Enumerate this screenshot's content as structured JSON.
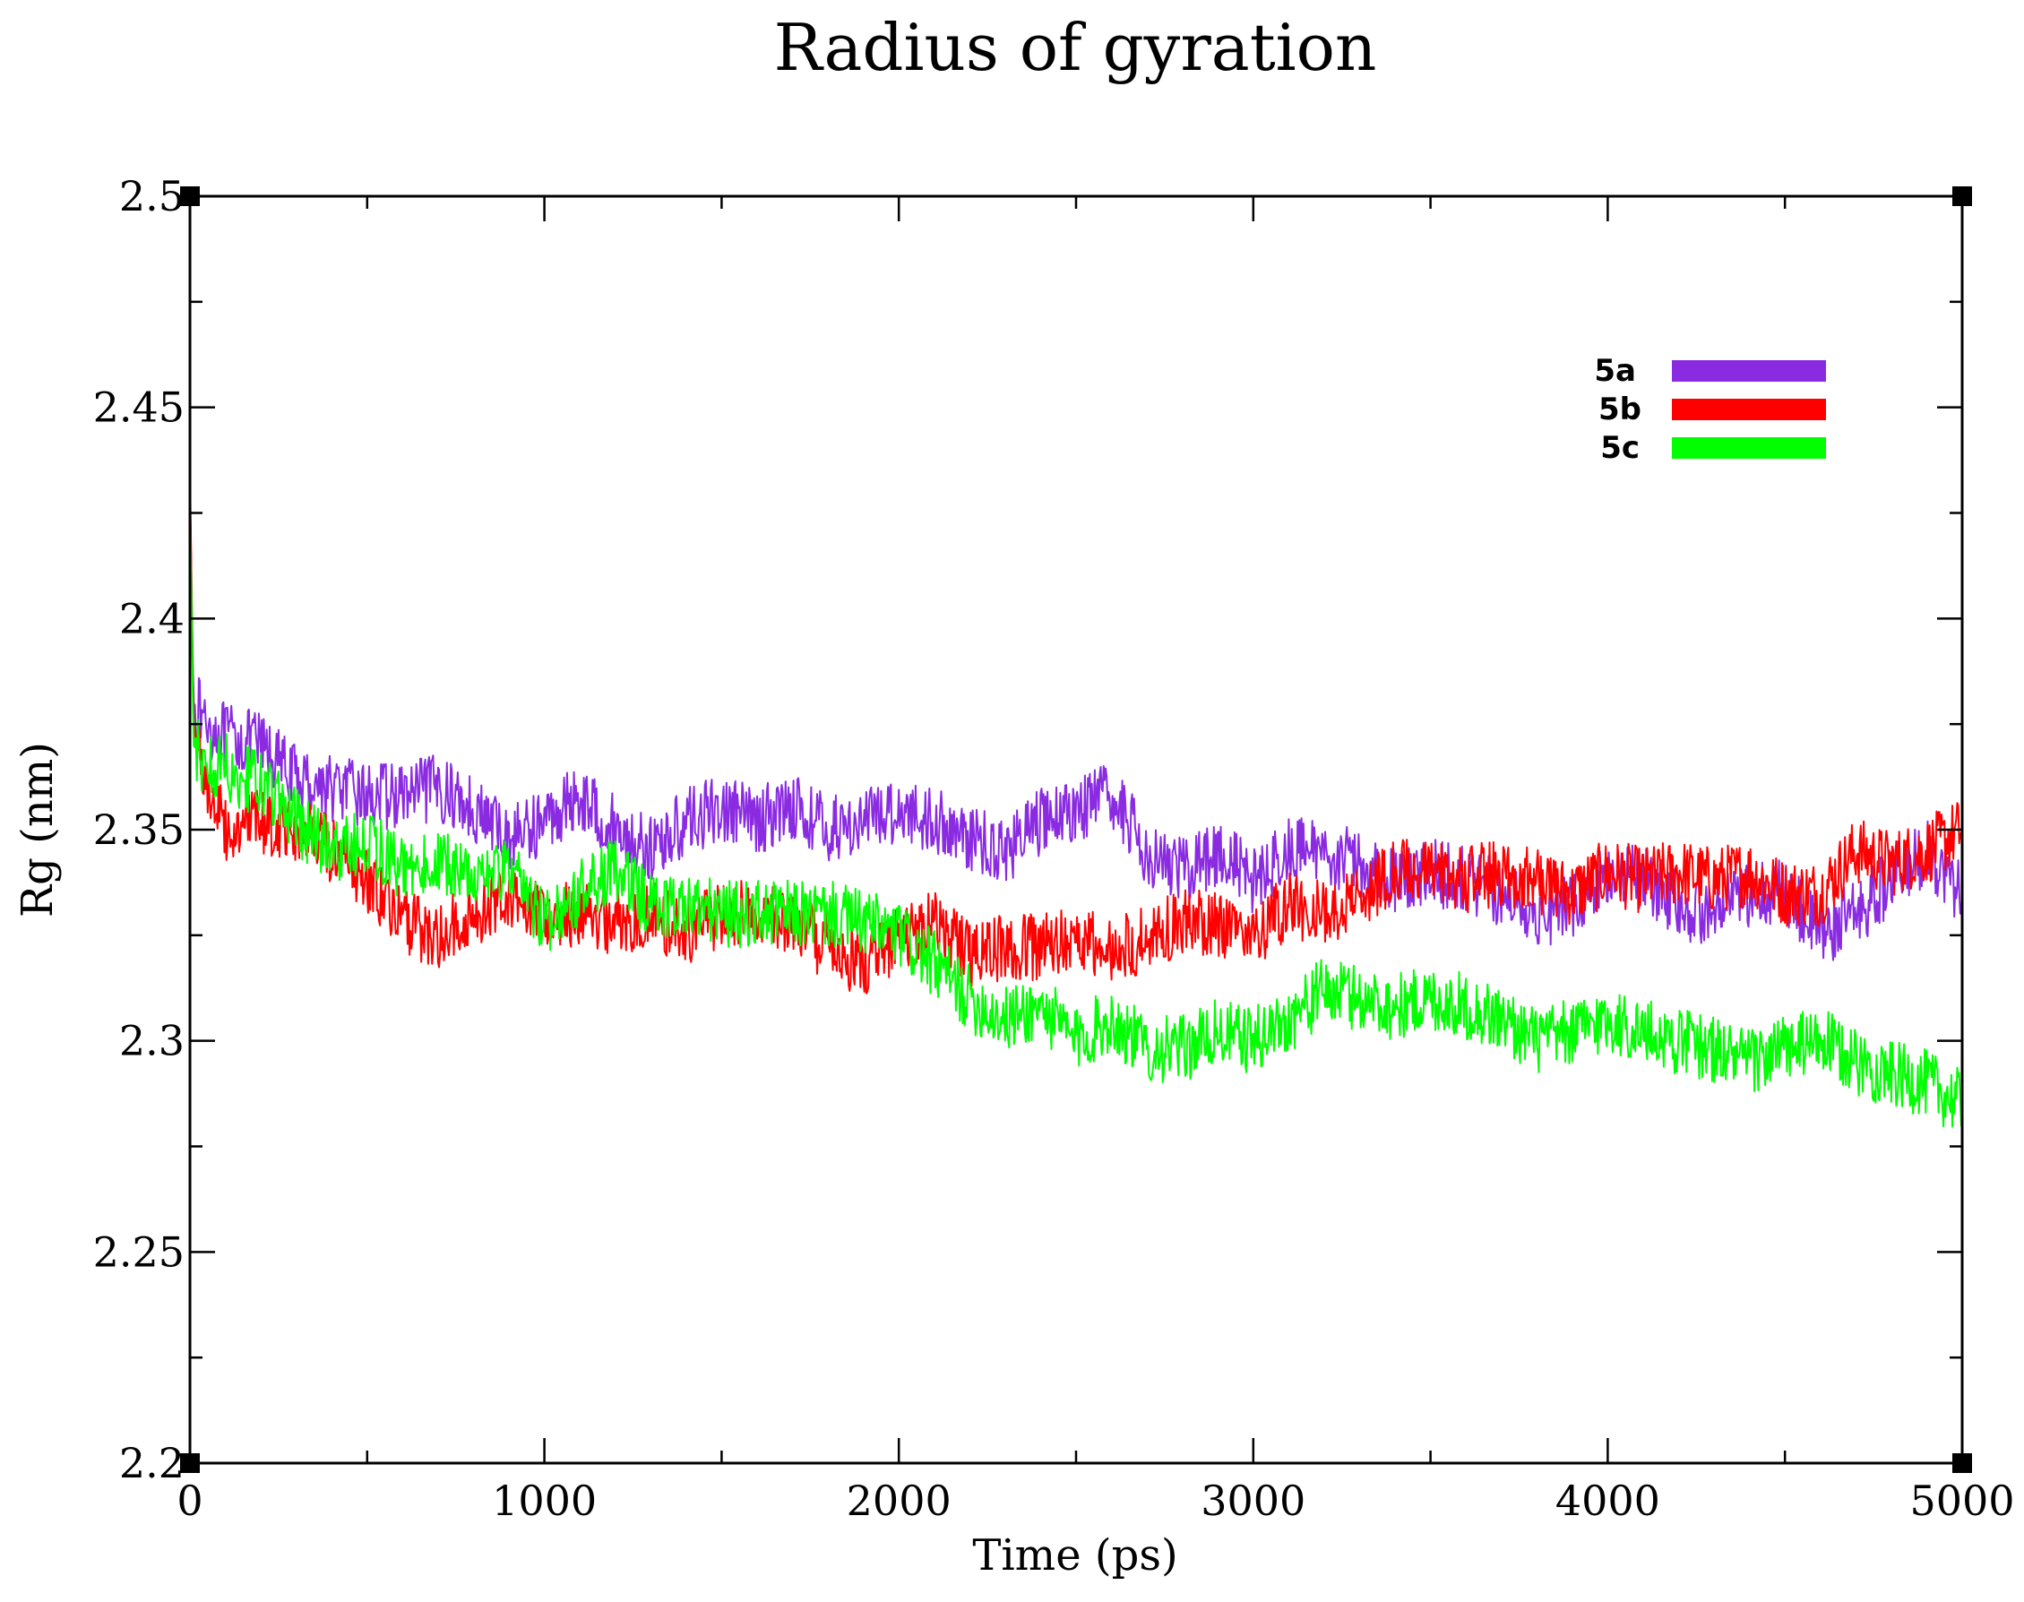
{
  "chart_data": {
    "type": "line",
    "title": "Radius of gyration",
    "xlabel": "Time (ps)",
    "ylabel": "Rg (nm)",
    "xlim": [
      0,
      5000
    ],
    "ylim": [
      2.2,
      2.5
    ],
    "x_ticks": [
      0,
      1000,
      2000,
      3000,
      4000,
      5000
    ],
    "x_tick_labels": [
      "0",
      "1000",
      "2000",
      "3000",
      "4000",
      "5000"
    ],
    "y_ticks": [
      2.2,
      2.25,
      2.3,
      2.35,
      2.4,
      2.45,
      2.5
    ],
    "y_tick_labels": [
      "2.2",
      "2.25",
      "2.3",
      "2.35",
      "2.4",
      "2.45",
      "2.5"
    ],
    "grid": false,
    "legend_position": "top-right",
    "series": [
      {
        "name": "5a",
        "color": "#8a2be2",
        "x": [
          0,
          10,
          50,
          100,
          200,
          300,
          400,
          500,
          600,
          700,
          800,
          900,
          1000,
          1100,
          1200,
          1300,
          1400,
          1500,
          1600,
          1700,
          1800,
          1900,
          2000,
          2100,
          2200,
          2300,
          2400,
          2500,
          2600,
          2700,
          2800,
          2900,
          3000,
          3100,
          3200,
          3300,
          3400,
          3500,
          3600,
          3700,
          3800,
          3900,
          4000,
          4100,
          4200,
          4300,
          4400,
          4500,
          4600,
          4700,
          4800,
          4900,
          5000
        ],
        "values": [
          2.43,
          2.38,
          2.375,
          2.372,
          2.37,
          2.362,
          2.36,
          2.358,
          2.358,
          2.36,
          2.355,
          2.348,
          2.352,
          2.358,
          2.35,
          2.345,
          2.352,
          2.355,
          2.352,
          2.356,
          2.35,
          2.352,
          2.355,
          2.352,
          2.348,
          2.345,
          2.352,
          2.355,
          2.358,
          2.345,
          2.34,
          2.345,
          2.338,
          2.345,
          2.345,
          2.342,
          2.338,
          2.34,
          2.338,
          2.335,
          2.33,
          2.332,
          2.34,
          2.338,
          2.332,
          2.33,
          2.335,
          2.335,
          2.325,
          2.33,
          2.338,
          2.345,
          2.335
        ]
      },
      {
        "name": "5b",
        "color": "#ff0000",
        "x": [
          0,
          10,
          50,
          100,
          200,
          300,
          400,
          500,
          600,
          700,
          800,
          900,
          1000,
          1100,
          1200,
          1300,
          1400,
          1500,
          1600,
          1700,
          1800,
          1900,
          2000,
          2100,
          2200,
          2300,
          2400,
          2500,
          2600,
          2700,
          2800,
          2900,
          3000,
          3100,
          3200,
          3300,
          3400,
          3500,
          3600,
          3700,
          3800,
          3900,
          4000,
          4100,
          4200,
          4300,
          4400,
          4500,
          4600,
          4700,
          4800,
          4900,
          5000
        ],
        "values": [
          2.435,
          2.375,
          2.36,
          2.35,
          2.352,
          2.35,
          2.345,
          2.338,
          2.328,
          2.325,
          2.33,
          2.335,
          2.33,
          2.33,
          2.328,
          2.33,
          2.325,
          2.33,
          2.33,
          2.328,
          2.322,
          2.318,
          2.325,
          2.328,
          2.32,
          2.322,
          2.322,
          2.325,
          2.32,
          2.325,
          2.328,
          2.328,
          2.325,
          2.332,
          2.33,
          2.335,
          2.34,
          2.34,
          2.338,
          2.34,
          2.338,
          2.335,
          2.34,
          2.338,
          2.34,
          2.338,
          2.34,
          2.335,
          2.335,
          2.345,
          2.342,
          2.345,
          2.35
        ]
      },
      {
        "name": "5c",
        "color": "#00ff00",
        "x": [
          0,
          10,
          50,
          100,
          200,
          300,
          400,
          500,
          600,
          700,
          800,
          900,
          1000,
          1100,
          1200,
          1300,
          1400,
          1500,
          1600,
          1700,
          1800,
          1900,
          2000,
          2100,
          2200,
          2300,
          2400,
          2500,
          2600,
          2700,
          2800,
          2900,
          3000,
          3100,
          3200,
          3300,
          3400,
          3500,
          3600,
          3700,
          3800,
          3900,
          4000,
          4100,
          4200,
          4300,
          4400,
          4500,
          4600,
          4700,
          4800,
          4900,
          5000
        ],
        "values": [
          2.43,
          2.37,
          2.365,
          2.365,
          2.36,
          2.352,
          2.345,
          2.348,
          2.34,
          2.342,
          2.34,
          2.34,
          2.328,
          2.335,
          2.34,
          2.332,
          2.332,
          2.33,
          2.33,
          2.33,
          2.33,
          2.328,
          2.325,
          2.318,
          2.31,
          2.305,
          2.308,
          2.3,
          2.305,
          2.298,
          2.298,
          2.302,
          2.3,
          2.305,
          2.312,
          2.31,
          2.308,
          2.31,
          2.308,
          2.305,
          2.3,
          2.302,
          2.305,
          2.302,
          2.3,
          2.298,
          2.295,
          2.298,
          2.3,
          2.295,
          2.292,
          2.29,
          2.285
        ]
      }
    ]
  }
}
